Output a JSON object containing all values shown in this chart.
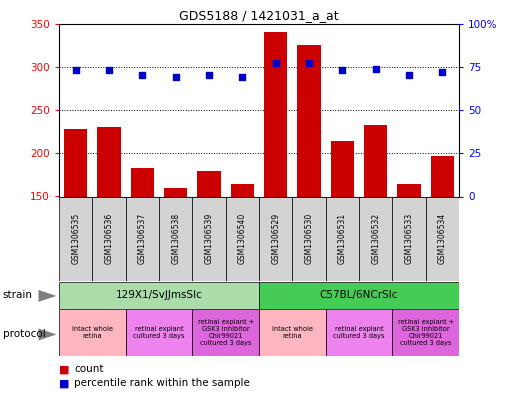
{
  "title": "GDS5188 / 1421031_a_at",
  "samples": [
    "GSM1306535",
    "GSM1306536",
    "GSM1306537",
    "GSM1306538",
    "GSM1306539",
    "GSM1306540",
    "GSM1306529",
    "GSM1306530",
    "GSM1306531",
    "GSM1306532",
    "GSM1306533",
    "GSM1306534"
  ],
  "counts": [
    228,
    230,
    183,
    160,
    180,
    165,
    340,
    325,
    214,
    233,
    165,
    197
  ],
  "percentiles": [
    73,
    73,
    70,
    69,
    70,
    69,
    77,
    77,
    73,
    74,
    70,
    72
  ],
  "ylim_left": [
    150,
    350
  ],
  "ylim_right": [
    0,
    100
  ],
  "yticks_left": [
    150,
    200,
    250,
    300,
    350
  ],
  "yticks_right": [
    0,
    25,
    50,
    75,
    100
  ],
  "strain_groups": [
    {
      "label": "129X1/SvJJmsSlc",
      "start": 0,
      "end": 6,
      "color": "#aaddaa"
    },
    {
      "label": "C57BL/6NCrSlc",
      "start": 6,
      "end": 12,
      "color": "#44cc55"
    }
  ],
  "protocol_groups": [
    {
      "label": "intact whole\nretina",
      "start": 0,
      "end": 2,
      "color": "#ffb6c1"
    },
    {
      "label": "retinal explant\ncultured 3 days",
      "start": 2,
      "end": 4,
      "color": "#ee82ee"
    },
    {
      "label": "retinal explant +\nGSK3 inhibitor\nChir99021\ncultured 3 days",
      "start": 4,
      "end": 6,
      "color": "#dd66dd"
    },
    {
      "label": "intact whole\nretina",
      "start": 6,
      "end": 8,
      "color": "#ffb6c1"
    },
    {
      "label": "retinal explant\ncultured 3 days",
      "start": 8,
      "end": 10,
      "color": "#ee82ee"
    },
    {
      "label": "retinal explant +\nGSK3 inhibitor\nChir99021\ncultured 3 days",
      "start": 10,
      "end": 12,
      "color": "#dd66dd"
    }
  ],
  "bar_color": "#cc0000",
  "dot_color": "#0000cc",
  "grid_color": "#000000",
  "bg_color": "#ffffff",
  "sample_bg_color": "#d3d3d3"
}
